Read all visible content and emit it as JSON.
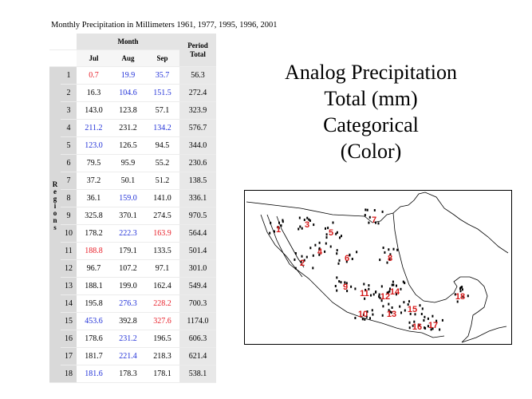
{
  "table_title": "Monthly Precipitation in Millimeters 1961, 1977, 1995, 1996, 2001",
  "headers": {
    "month": "Month",
    "months": [
      "Jul",
      "Aug",
      "Sep"
    ],
    "period_line1": "Period",
    "period_line2": "Total",
    "regions_letters": [
      "R",
      "e",
      "g",
      "i",
      "o",
      "n",
      "s"
    ]
  },
  "big_title": {
    "line1": "Analog Precipitation",
    "line2": "Total (mm)",
    "line3": "Categorical",
    "line4": "(Color)"
  },
  "colors": {
    "low": "#e8202a",
    "high": "#2030d8",
    "normal": "#000000",
    "map_label": "#d51818"
  },
  "map_icons": [
    "region-map"
  ],
  "chart_data": {
    "type": "table",
    "title": "Monthly Precipitation in Millimeters 1961, 1977, 1995, 1996, 2001",
    "columns": [
      "Jul",
      "Aug",
      "Sep",
      "Period Total"
    ],
    "rows": [
      {
        "region": "1",
        "jul": "0.7",
        "jul_c": "low",
        "aug": "19.9",
        "aug_c": "high",
        "sep": "35.7",
        "sep_c": "high",
        "total": "56.3"
      },
      {
        "region": "2",
        "jul": "16.3",
        "jul_c": "normal",
        "aug": "104.6",
        "aug_c": "high",
        "sep": "151.5",
        "sep_c": "high",
        "total": "272.4"
      },
      {
        "region": "3",
        "jul": "143.0",
        "jul_c": "normal",
        "aug": "123.8",
        "aug_c": "normal",
        "sep": "57.1",
        "sep_c": "normal",
        "total": "323.9"
      },
      {
        "region": "4",
        "jul": "211.2",
        "jul_c": "high",
        "aug": "231.2",
        "aug_c": "normal",
        "sep": "134.2",
        "sep_c": "high",
        "total": "576.7"
      },
      {
        "region": "5",
        "jul": "123.0",
        "jul_c": "high",
        "aug": "126.5",
        "aug_c": "normal",
        "sep": "94.5",
        "sep_c": "normal",
        "total": "344.0"
      },
      {
        "region": "6",
        "jul": "79.5",
        "jul_c": "normal",
        "aug": "95.9",
        "aug_c": "normal",
        "sep": "55.2",
        "sep_c": "normal",
        "total": "230.6"
      },
      {
        "region": "7",
        "jul": "37.2",
        "jul_c": "normal",
        "aug": "50.1",
        "aug_c": "normal",
        "sep": "51.2",
        "sep_c": "normal",
        "total": "138.5"
      },
      {
        "region": "8",
        "jul": "36.1",
        "jul_c": "normal",
        "aug": "159.0",
        "aug_c": "high",
        "sep": "141.0",
        "sep_c": "normal",
        "total": "336.1"
      },
      {
        "region": "9",
        "jul": "325.8",
        "jul_c": "normal",
        "aug": "370.1",
        "aug_c": "normal",
        "sep": "274.5",
        "sep_c": "normal",
        "total": "970.5"
      },
      {
        "region": "10",
        "jul": "178.2",
        "jul_c": "normal",
        "aug": "222.3",
        "aug_c": "high",
        "sep": "163.9",
        "sep_c": "low",
        "total": "564.4"
      },
      {
        "region": "11",
        "jul": "188.8",
        "jul_c": "low",
        "aug": "179.1",
        "aug_c": "normal",
        "sep": "133.5",
        "sep_c": "normal",
        "total": "501.4"
      },
      {
        "region": "12",
        "jul": "96.7",
        "jul_c": "normal",
        "aug": "107.2",
        "aug_c": "normal",
        "sep": "97.1",
        "sep_c": "normal",
        "total": "301.0"
      },
      {
        "region": "13",
        "jul": "188.1",
        "jul_c": "normal",
        "aug": "199.0",
        "aug_c": "normal",
        "sep": "162.4",
        "sep_c": "normal",
        "total": "549.4"
      },
      {
        "region": "14",
        "jul": "195.8",
        "jul_c": "normal",
        "aug": "276.3",
        "aug_c": "high",
        "sep": "228.2",
        "sep_c": "low",
        "total": "700.3"
      },
      {
        "region": "15",
        "jul": "453.6",
        "jul_c": "high",
        "aug": "392.8",
        "aug_c": "normal",
        "sep": "327.6",
        "sep_c": "low",
        "total": "1174.0"
      },
      {
        "region": "16",
        "jul": "178.6",
        "jul_c": "normal",
        "aug": "231.2",
        "aug_c": "high",
        "sep": "196.5",
        "sep_c": "normal",
        "total": "606.3"
      },
      {
        "region": "17",
        "jul": "181.7",
        "jul_c": "normal",
        "aug": "221.4",
        "aug_c": "high",
        "sep": "218.3",
        "sep_c": "normal",
        "total": "621.4"
      },
      {
        "region": "18",
        "jul": "181.6",
        "jul_c": "high",
        "aug": "178.3",
        "aug_c": "normal",
        "sep": "178.1",
        "sep_c": "normal",
        "total": "538.1"
      }
    ]
  }
}
